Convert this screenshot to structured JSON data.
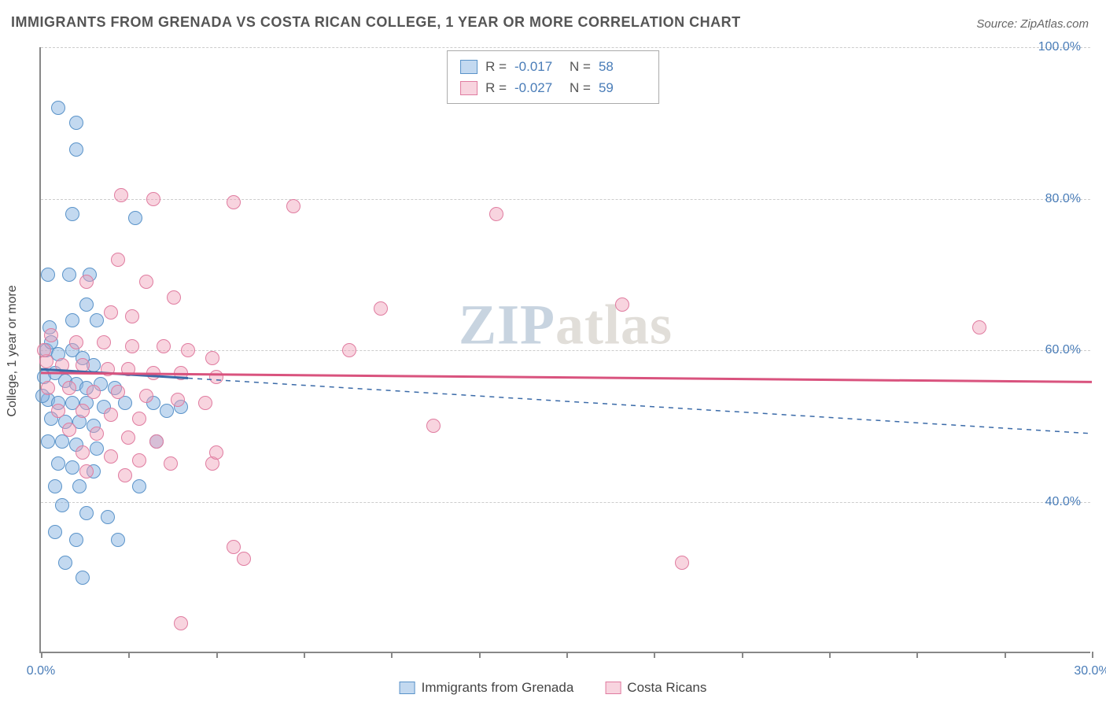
{
  "title": "IMMIGRANTS FROM GRENADA VS COSTA RICAN COLLEGE, 1 YEAR OR MORE CORRELATION CHART",
  "source_label": "Source:",
  "source_value": "ZipAtlas.com",
  "ylabel": "College, 1 year or more",
  "watermark_a": "ZIP",
  "watermark_b": "atlas",
  "chart": {
    "type": "scatter",
    "xlim": [
      0,
      30
    ],
    "ylim": [
      20,
      100
    ],
    "x_ticks": [
      0,
      2.5,
      5,
      7.5,
      10,
      12.5,
      15,
      17.5,
      20,
      22.5,
      25,
      27.5,
      30
    ],
    "x_tick_labels": {
      "0": "0.0%",
      "30": "30.0%"
    },
    "y_ticks": [
      40,
      60,
      80,
      100
    ],
    "y_tick_labels": {
      "40": "40.0%",
      "60": "60.0%",
      "80": "80.0%",
      "100": "100.0%"
    },
    "background_color": "#ffffff",
    "grid_color": "#cccccc",
    "axis_color": "#888888",
    "label_color": "#4a7db8",
    "point_radius": 9,
    "series": [
      {
        "key": "grenada",
        "label": "Immigrants from Grenada",
        "fill": "rgba(135,180,225,0.5)",
        "stroke": "#5a93c9",
        "R": "-0.017",
        "N": "58",
        "trend": {
          "y0": 57.5,
          "y1": 49.0,
          "solid_until_x": 4.2,
          "color": "#3a6aa8",
          "width": 3,
          "dash": "6 6"
        },
        "points": [
          [
            0.5,
            92
          ],
          [
            1.0,
            90
          ],
          [
            1.0,
            86.5
          ],
          [
            0.9,
            78
          ],
          [
            2.7,
            77.5
          ],
          [
            0.2,
            70
          ],
          [
            0.8,
            70
          ],
          [
            1.4,
            70
          ],
          [
            0.25,
            63
          ],
          [
            0.9,
            64
          ],
          [
            1.3,
            66
          ],
          [
            1.6,
            64
          ],
          [
            0.15,
            60
          ],
          [
            0.3,
            61
          ],
          [
            0.5,
            59.5
          ],
          [
            0.9,
            60
          ],
          [
            1.2,
            59
          ],
          [
            1.5,
            58
          ],
          [
            0.1,
            56.5
          ],
          [
            0.4,
            57
          ],
          [
            0.7,
            56
          ],
          [
            1.0,
            55.5
          ],
          [
            1.3,
            55
          ],
          [
            1.7,
            55.5
          ],
          [
            2.1,
            55
          ],
          [
            0.2,
            53.5
          ],
          [
            0.5,
            53
          ],
          [
            0.9,
            53
          ],
          [
            1.3,
            53
          ],
          [
            1.8,
            52.5
          ],
          [
            2.4,
            53
          ],
          [
            3.2,
            53
          ],
          [
            4.0,
            52.5
          ],
          [
            0.3,
            51
          ],
          [
            0.7,
            50.5
          ],
          [
            1.1,
            50.5
          ],
          [
            1.5,
            50
          ],
          [
            0.2,
            48
          ],
          [
            0.6,
            48
          ],
          [
            1.0,
            47.5
          ],
          [
            1.6,
            47
          ],
          [
            3.3,
            48
          ],
          [
            3.6,
            52
          ],
          [
            0.5,
            45
          ],
          [
            0.9,
            44.5
          ],
          [
            1.5,
            44
          ],
          [
            0.4,
            42
          ],
          [
            1.1,
            42
          ],
          [
            2.8,
            42
          ],
          [
            0.6,
            39.5
          ],
          [
            1.3,
            38.5
          ],
          [
            1.9,
            38
          ],
          [
            0.4,
            36
          ],
          [
            1.0,
            35
          ],
          [
            2.2,
            35
          ],
          [
            0.7,
            32
          ],
          [
            1.2,
            30
          ],
          [
            0.05,
            54
          ]
        ]
      },
      {
        "key": "costaricans",
        "label": "Costa Ricans",
        "fill": "rgba(240,160,185,0.45)",
        "stroke": "#e07ca0",
        "R": "-0.027",
        "N": "59",
        "trend": {
          "y0": 57.0,
          "y1": 55.8,
          "solid_until_x": 30,
          "color": "#d9537e",
          "width": 3
        },
        "points": [
          [
            2.3,
            80.5
          ],
          [
            3.2,
            80
          ],
          [
            5.5,
            79.5
          ],
          [
            7.2,
            79
          ],
          [
            13.0,
            78
          ],
          [
            2.2,
            72
          ],
          [
            1.3,
            69
          ],
          [
            3.0,
            69
          ],
          [
            3.8,
            67
          ],
          [
            2.0,
            65
          ],
          [
            2.6,
            64.5
          ],
          [
            16.6,
            66
          ],
          [
            9.7,
            65.5
          ],
          [
            26.8,
            63
          ],
          [
            0.3,
            62
          ],
          [
            1.0,
            61
          ],
          [
            1.8,
            61
          ],
          [
            2.6,
            60.5
          ],
          [
            3.5,
            60.5
          ],
          [
            4.2,
            60
          ],
          [
            4.9,
            59
          ],
          [
            8.8,
            60
          ],
          [
            0.15,
            58.5
          ],
          [
            0.6,
            58
          ],
          [
            1.2,
            58
          ],
          [
            1.9,
            57.5
          ],
          [
            2.5,
            57.5
          ],
          [
            3.2,
            57
          ],
          [
            4.0,
            57
          ],
          [
            5.0,
            56.5
          ],
          [
            0.2,
            55
          ],
          [
            0.8,
            55
          ],
          [
            1.5,
            54.5
          ],
          [
            2.2,
            54.5
          ],
          [
            3.0,
            54
          ],
          [
            3.9,
            53.5
          ],
          [
            4.7,
            53
          ],
          [
            0.5,
            52
          ],
          [
            1.2,
            52
          ],
          [
            2.0,
            51.5
          ],
          [
            2.8,
            51
          ],
          [
            11.2,
            50
          ],
          [
            0.8,
            49.5
          ],
          [
            1.6,
            49
          ],
          [
            2.5,
            48.5
          ],
          [
            3.3,
            48
          ],
          [
            1.2,
            46.5
          ],
          [
            2.0,
            46
          ],
          [
            2.8,
            45.5
          ],
          [
            3.7,
            45
          ],
          [
            4.9,
            45
          ],
          [
            5.0,
            46.5
          ],
          [
            1.3,
            44
          ],
          [
            2.4,
            43.5
          ],
          [
            5.5,
            34
          ],
          [
            5.8,
            32.5
          ],
          [
            4.0,
            24
          ],
          [
            18.3,
            32
          ],
          [
            0.1,
            60
          ]
        ]
      }
    ]
  },
  "legend_top_labels": {
    "R": "R =",
    "N": "N ="
  }
}
